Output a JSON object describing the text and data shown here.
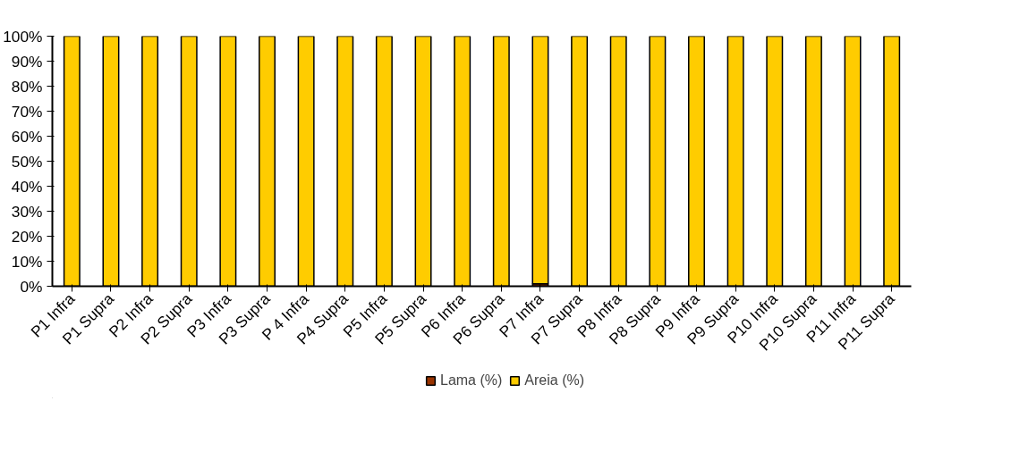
{
  "chart_data": {
    "type": "bar",
    "stacked": true,
    "categories": [
      "P1 Infra",
      "P1 Supra",
      "P2 Infra",
      "P2 Supra",
      "P3 Infra",
      "P3 Supra",
      "P 4 Infra",
      "P4 Supra",
      "P5 Infra",
      "P5 Supra",
      "P6 Infra",
      "P6 Supra",
      "P7 Infra",
      "P7 Supra",
      "P8 Infra",
      "P8 Supra",
      "P9 Infra",
      "P9 Supra",
      "P10 Infra",
      "P10 Supra",
      "P11 Infra",
      "P11 Supra"
    ],
    "series": [
      {
        "name": "Lama (%)",
        "color": "#993300",
        "values": [
          0,
          0,
          0,
          0,
          0,
          0,
          0,
          0,
          0,
          0,
          0,
          0,
          1,
          0,
          0,
          0,
          0,
          0,
          0,
          0,
          0,
          0
        ]
      },
      {
        "name": "Areia (%)",
        "color": "#ffcc00",
        "values": [
          100,
          100,
          100,
          100,
          100,
          100,
          100,
          100,
          100,
          100,
          100,
          100,
          99,
          100,
          100,
          100,
          100,
          100,
          100,
          100,
          100,
          100
        ]
      }
    ],
    "ylim": [
      0,
      100
    ],
    "yticks": [
      {
        "value": 0,
        "label": "0%"
      },
      {
        "value": 10,
        "label": "10%"
      },
      {
        "value": 20,
        "label": "20%"
      },
      {
        "value": 30,
        "label": "30%"
      },
      {
        "value": 40,
        "label": "40%"
      },
      {
        "value": 50,
        "label": "50%"
      },
      {
        "value": 60,
        "label": "60%"
      },
      {
        "value": 70,
        "label": "70%"
      },
      {
        "value": 80,
        "label": "80%"
      },
      {
        "value": 90,
        "label": "90%"
      },
      {
        "value": 100,
        "label": "100%"
      }
    ],
    "grid": false,
    "legend": "bottom"
  }
}
